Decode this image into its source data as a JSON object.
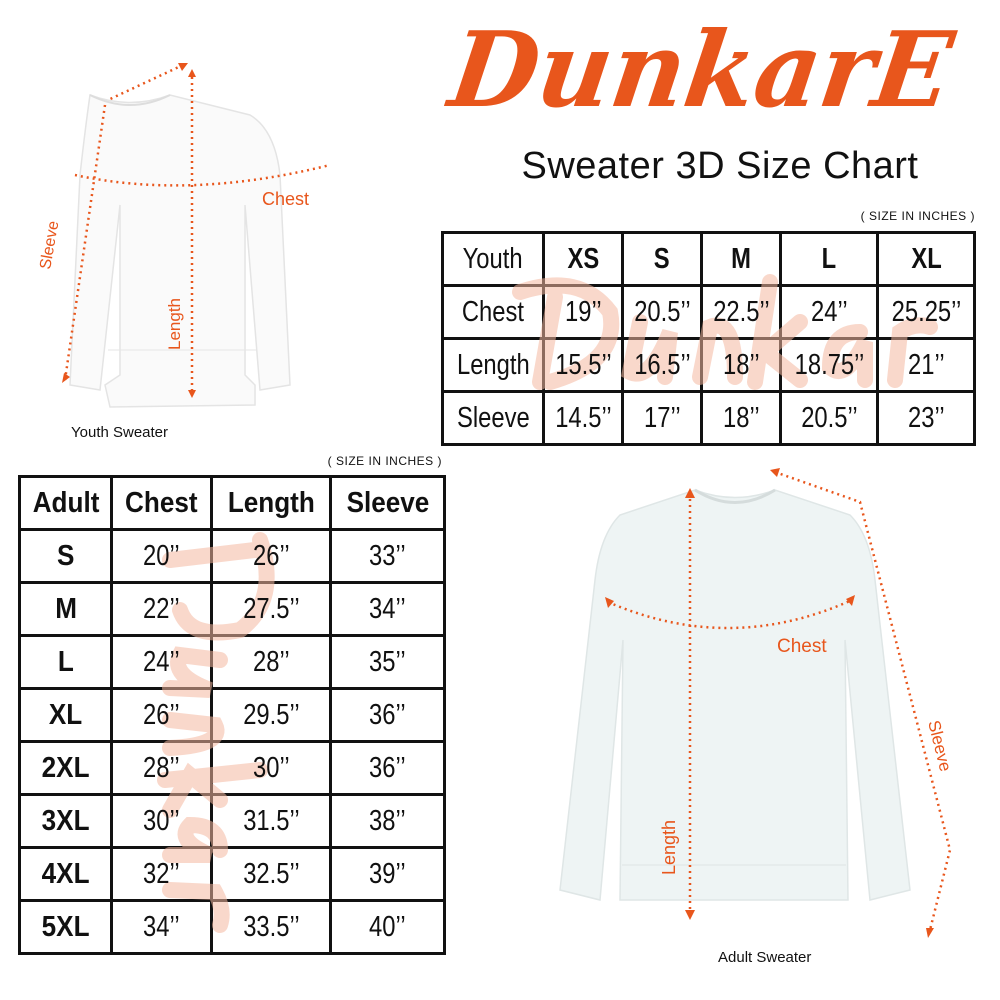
{
  "brand": {
    "logo_text": "DunkarE",
    "color": "#e8561c"
  },
  "title": "Sweater 3D Size Chart",
  "youth": {
    "figure_label": "Youth Sweater",
    "measure_labels": {
      "chest": "Chest",
      "length": "Length",
      "sleeve": "Sleeve"
    },
    "unit_note": "( SIZE IN INCHES )",
    "header": [
      "Youth",
      "XS",
      "S",
      "M",
      "L",
      "XL"
    ],
    "rows": [
      [
        "Chest",
        "19’’",
        "20.5’’",
        "22.5’’",
        "24’’",
        "25.25’’"
      ],
      [
        "Length",
        "15.5’’",
        "16.5’’",
        "18’’",
        "18.75’’",
        "21’’"
      ],
      [
        "Sleeve",
        "14.5’’",
        "17’’",
        "18’’",
        "20.5’’",
        "23’’"
      ]
    ]
  },
  "adult": {
    "figure_label": "Adult Sweater",
    "measure_labels": {
      "chest": "Chest",
      "length": "Length",
      "sleeve": "Sleeve"
    },
    "unit_note": "( SIZE IN INCHES )",
    "header": [
      "Adult",
      "Chest",
      "Length",
      "Sleeve"
    ],
    "rows": [
      [
        "S",
        "20’’",
        "26’’",
        "33’’"
      ],
      [
        "M",
        "22’’",
        "27.5’’",
        "34’’"
      ],
      [
        "L",
        "24’’",
        "28’’",
        "35’’"
      ],
      [
        "XL",
        "26’’",
        "29.5’’",
        "36’’"
      ],
      [
        "2XL",
        "28’’",
        "30’’",
        "36’’"
      ],
      [
        "3XL",
        "30’’",
        "31.5’’",
        "38’’"
      ],
      [
        "4XL",
        "32’’",
        "32.5’’",
        "39’’"
      ],
      [
        "5XL",
        "34’’",
        "33.5’’",
        "40’’"
      ]
    ]
  }
}
